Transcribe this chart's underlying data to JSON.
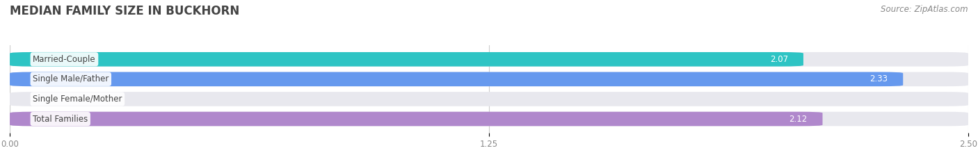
{
  "title": "MEDIAN FAMILY SIZE IN BUCKHORN",
  "source": "Source: ZipAtlas.com",
  "categories": [
    "Married-Couple",
    "Single Male/Father",
    "Single Female/Mother",
    "Total Families"
  ],
  "values": [
    2.07,
    2.33,
    0.0,
    2.12
  ],
  "bar_colors": [
    "#2ec4c4",
    "#6699ee",
    "#f4a0b5",
    "#b088cc"
  ],
  "xlim": [
    0,
    2.5
  ],
  "xticks": [
    0.0,
    1.25,
    2.5
  ],
  "xtick_labels": [
    "0.00",
    "1.25",
    "2.50"
  ],
  "bar_height": 0.72,
  "bar_gap": 0.28,
  "background_color": "#ffffff",
  "bar_bg_color": "#e8e8ee",
  "title_fontsize": 12,
  "label_fontsize": 8.5,
  "value_fontsize": 8.5,
  "source_fontsize": 8.5
}
